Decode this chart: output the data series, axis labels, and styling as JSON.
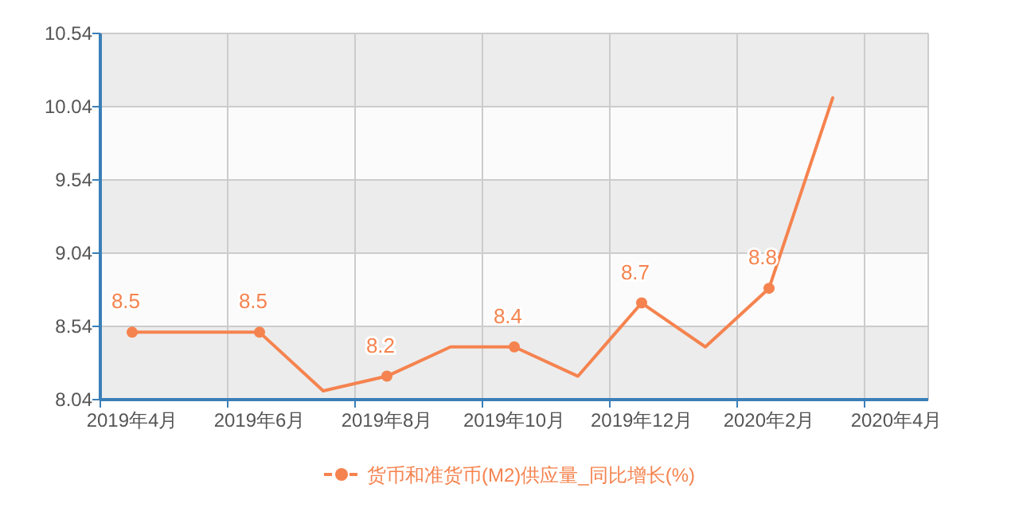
{
  "chart_data": {
    "type": "line",
    "categories": [
      "2019年4月",
      null,
      "2019年6月",
      null,
      "2019年8月",
      null,
      "2019年10月",
      null,
      "2019年12月",
      null,
      "2020年2月",
      null,
      "2020年4月"
    ],
    "series": [
      {
        "name": "货币和准货币(M2)供应量_同比增长(%)",
        "color": "#f5834f",
        "values": [
          8.5,
          8.5,
          8.5,
          8.1,
          8.2,
          8.4,
          8.4,
          8.2,
          8.7,
          8.4,
          8.8,
          10.1,
          null
        ],
        "value_labels": [
          "8.5",
          null,
          "8.5",
          null,
          "8.2",
          null,
          "8.4",
          null,
          "8.7",
          null,
          "8.8",
          null,
          null
        ]
      }
    ],
    "ylim": [
      8.04,
      10.54
    ],
    "yticks": [
      8.04,
      8.54,
      9.04,
      9.54,
      10.04,
      10.54
    ],
    "grid": true,
    "legend": "bottom",
    "marker": "circle",
    "line_style": "solid"
  }
}
